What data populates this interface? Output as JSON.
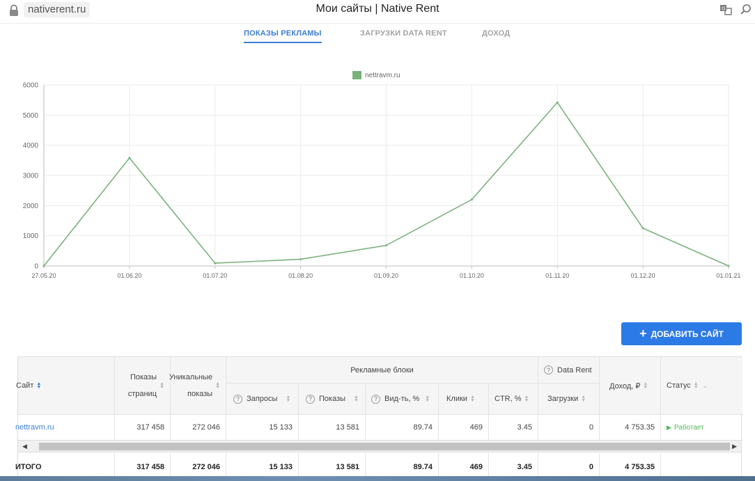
{
  "browser": {
    "url": "nativerent.ru",
    "title": "Мои сайты | Native Rent",
    "icons": [
      "lock-icon",
      "translate-icon",
      "search-icon"
    ]
  },
  "tabs": [
    {
      "label": "ПОКАЗЫ РЕКЛАМЫ",
      "active": true
    },
    {
      "label": "ЗАГРУЗКИ DATA RENT",
      "active": false
    },
    {
      "label": "ДОХОД",
      "active": false
    }
  ],
  "chart_data": {
    "type": "line",
    "legend": [
      "nettravm.ru"
    ],
    "legend_placement": "top-center",
    "grid": true,
    "color": "#79b27b",
    "x": [
      "27.05.20",
      "01.06.20",
      "01.07.20",
      "01.08.20",
      "01.09.20",
      "01.10.20",
      "01.11.20",
      "01.12.20",
      "01.01.21"
    ],
    "ylim": [
      0,
      6000
    ],
    "yticks": [
      "0",
      "1000",
      "2000",
      "3000",
      "4000",
      "5000",
      "6000"
    ],
    "series": [
      {
        "name": "nettravm.ru",
        "values": [
          0,
          3580,
          90,
          220,
          680,
          2200,
          5420,
          1250,
          0
        ]
      }
    ]
  },
  "actions": {
    "add_site": "ДОБАВИТЬ САЙТ"
  },
  "table": {
    "headers": {
      "site": "Сайт",
      "page_views": "Показы страниц",
      "unique_views": "Уникальные показы",
      "ad_blocks": "Рекламные блоки",
      "requests": "Запросы",
      "impressions": "Показы",
      "visibility": "Вид-ть, %",
      "clicks": "Клики",
      "ctr": "CTR, %",
      "data_rent": "Data Rent",
      "downloads": "Загрузки",
      "income": "Доход, ₽",
      "status": "Статус"
    },
    "rows": [
      {
        "site": "nettravm.ru",
        "page_views": "317 458",
        "unique_views": "272 046",
        "requests": "15 133",
        "impressions": "13 581",
        "visibility": "89.74",
        "clicks": "469",
        "ctr": "3.45",
        "downloads": "0",
        "income": "4 753.35",
        "status": "Работает"
      }
    ],
    "total": {
      "label": "ИТОГО",
      "page_views": "317 458",
      "unique_views": "272 046",
      "requests": "15 133",
      "impressions": "13 581",
      "visibility": "89.74",
      "clicks": "469",
      "ctr": "3.45",
      "downloads": "0",
      "income": "4 753.35"
    }
  }
}
